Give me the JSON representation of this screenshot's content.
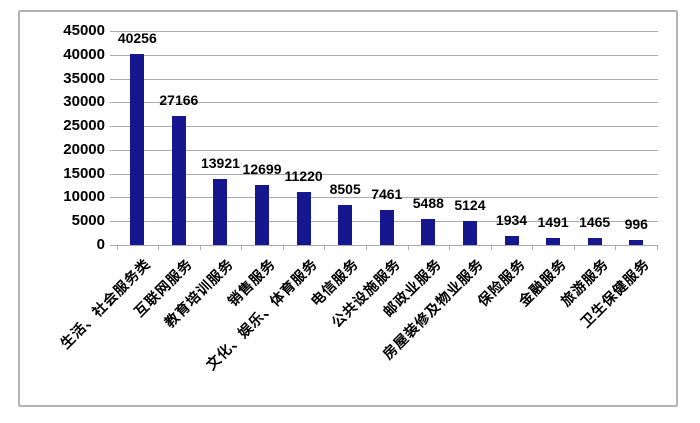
{
  "chart_data": {
    "type": "bar",
    "title": "",
    "xlabel": "",
    "ylabel": "",
    "categories": [
      "生活、社会服务类",
      "互联网服务",
      "教育培训服务",
      "销售服务",
      "文化、娱乐、体育服务",
      "电信服务",
      "公共设施服务",
      "邮政业服务",
      "房屋装修及物业服务",
      "保险服务",
      "金融服务",
      "旅游服务",
      "卫生保健服务"
    ],
    "values": [
      40256,
      27166,
      13921,
      12699,
      11220,
      8505,
      7461,
      5488,
      5124,
      1934,
      1491,
      1465,
      996
    ],
    "data_labels": [
      "40256",
      "27166",
      "13921",
      "12699",
      "11220",
      "8505",
      "7461",
      "5488",
      "5124",
      "1934",
      "1491",
      "1465",
      "996"
    ],
    "y_ticks": [
      0,
      5000,
      10000,
      15000,
      20000,
      25000,
      30000,
      35000,
      40000,
      45000
    ],
    "ylim": [
      0,
      45000
    ],
    "grid": true,
    "legend": false,
    "colors": {
      "bar": "#16168F",
      "gridline": "#ABABAB",
      "text": "#000000",
      "frame_border": "#B3B3B3",
      "background": "#FFFFFF"
    }
  }
}
